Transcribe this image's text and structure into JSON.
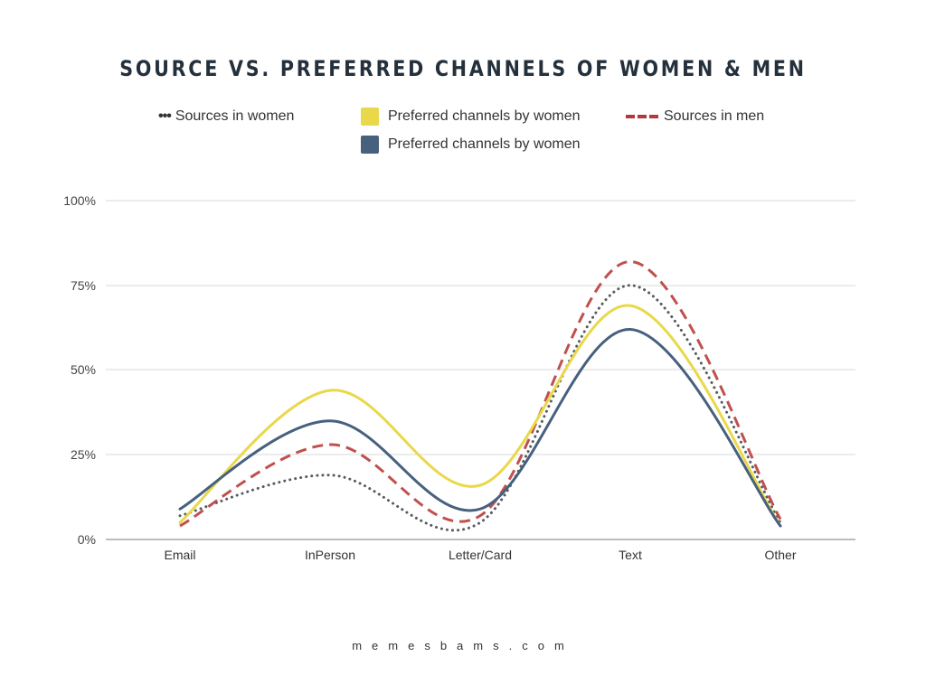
{
  "title": "SOURCE VS. PREFERRED CHANNELS OF WOMEN & MEN",
  "legend": [
    {
      "label": "Sources in women",
      "style": "dotted",
      "color": "#555b60"
    },
    {
      "label": "Preferred channels by women",
      "style": "solid",
      "color": "#e9d84a"
    },
    {
      "label": "Sources in men",
      "style": "dashed",
      "color": "#b23a3a"
    },
    {
      "label": "Preferred channels by women",
      "style": "solid",
      "color": "#46607e"
    }
  ],
  "y_ticks": [
    "100%",
    "75%",
    "50%",
    "25%",
    "0%"
  ],
  "x_ticks": [
    "Email",
    "InPerson",
    "Letter/Card",
    "Text",
    "Other"
  ],
  "footer": "memesbams.com",
  "chart_data": {
    "type": "line",
    "title": "SOURCE VS. PREFERRED CHANNELS OF WOMEN & MEN",
    "xlabel": "",
    "ylabel": "",
    "categories": [
      "Email",
      "InPerson",
      "Letter/Card",
      "Text",
      "Other"
    ],
    "ylim": [
      0,
      100
    ],
    "y_format": "percent",
    "grid": true,
    "legend_position": "top",
    "smooth": true,
    "series": [
      {
        "name": "Sources in women",
        "style": "dotted",
        "color": "#555b60",
        "values": [
          7,
          19,
          5,
          75,
          5
        ]
      },
      {
        "name": "Preferred channels by women",
        "style": "solid",
        "color": "#e9d84a",
        "values": [
          5,
          44,
          16,
          69,
          4
        ]
      },
      {
        "name": "Sources in men",
        "style": "dashed",
        "color": "#c0504d",
        "values": [
          4,
          28,
          7,
          82,
          6
        ]
      },
      {
        "name": "Preferred channels by women",
        "style": "solid",
        "color": "#46607e",
        "values": [
          9,
          35,
          9,
          62,
          4
        ]
      }
    ]
  }
}
